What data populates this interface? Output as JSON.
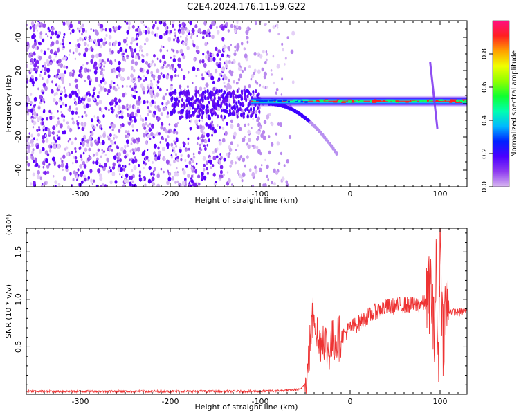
{
  "title": "C2E4.2024.176.11.59.G22",
  "chart_data": [
    {
      "type": "heatmap",
      "xlabel": "Height of straight line (km)",
      "ylabel": "Frequency (Hz)",
      "xlim": [
        -360,
        130
      ],
      "ylim": [
        -50,
        50
      ],
      "x_ticks": [
        -300,
        -200,
        -100,
        0,
        100
      ],
      "y_ticks": [
        -40,
        -20,
        0,
        20,
        40
      ],
      "colorbar": {
        "label": "Normalized spectral amplitude",
        "range": [
          0,
          1
        ],
        "ticks": [
          "0.0",
          "0.2",
          "0.4",
          "0.6",
          "0.8"
        ],
        "colors": [
          "#d8b8f0",
          "#8f3cf0",
          "#4b00ff",
          "#0020ff",
          "#00b8ff",
          "#00ffb0",
          "#10ff30",
          "#90ff00",
          "#f0ff00",
          "#ffa000",
          "#ff2020",
          "#ff1080"
        ]
      },
      "features": {
        "noise_region_x": [
          -360,
          -80
        ],
        "dominant_line_x": [
          -110,
          130
        ],
        "dominant_line_freq_hz": 1.5,
        "weak_track_x": [
          -90,
          -15
        ],
        "weak_track_freq_hz": [
          0,
          -30
        ],
        "vertical_streak_x": 95,
        "vertical_streak_freq_hz": [
          -15,
          25
        ]
      }
    },
    {
      "type": "line",
      "xlabel": "Height of straight line (km)",
      "ylabel": "SNR (10 * v/v)",
      "scale_label": "(x10⁴)",
      "xlim": [
        -360,
        130
      ],
      "ylim": [
        0,
        1.75
      ],
      "x_ticks": [
        -300,
        -200,
        -100,
        0,
        100
      ],
      "y_ticks": [
        "0.5",
        "1.0",
        "1.5"
      ],
      "series": [
        {
          "color": "#ee3333",
          "x": [
            -360,
            -300,
            -250,
            -200,
            -150,
            -100,
            -70,
            -55,
            -48,
            -44,
            -40,
            -35,
            -30,
            -25,
            -20,
            -10,
            0,
            10,
            20,
            30,
            40,
            50,
            60,
            70,
            80,
            85,
            90,
            93,
            96,
            98,
            100,
            103,
            106,
            110,
            120,
            130
          ],
          "y": [
            0.03,
            0.03,
            0.03,
            0.03,
            0.03,
            0.03,
            0.04,
            0.05,
            0.15,
            0.6,
            0.9,
            0.5,
            0.65,
            0.45,
            0.55,
            0.6,
            0.7,
            0.75,
            0.82,
            0.88,
            0.92,
            0.93,
            0.94,
            0.94,
            0.95,
            0.97,
            1.15,
            0.6,
            1.35,
            0.15,
            1.75,
            0.6,
            0.9,
            0.88,
            0.86,
            0.88
          ]
        }
      ]
    }
  ]
}
